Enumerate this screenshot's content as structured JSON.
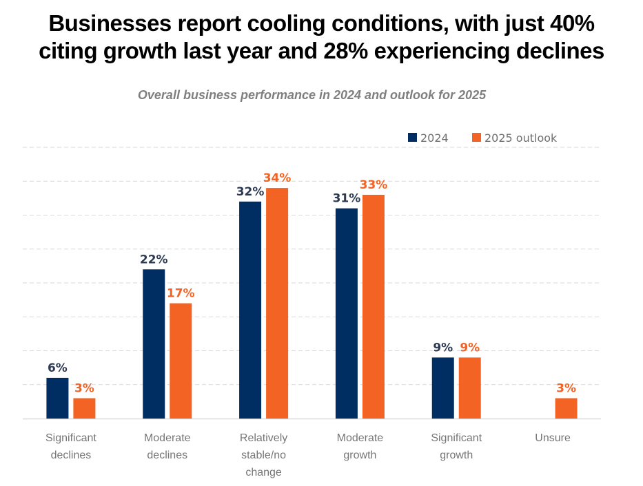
{
  "title": "Businesses report cooling conditions, with just 40% citing growth last year and 28% experiencing declines",
  "title_lines": [
    "Businesses report cooling conditions, with just 40%",
    "citing growth last year and 28% experiencing declines"
  ],
  "subtitle": "Overall business performance in 2024 and outlook for 2025",
  "chart_data": {
    "type": "bar",
    "title": "Overall business performance in 2024 and outlook for 2025",
    "xlabel": "",
    "ylabel": "",
    "ylim": [
      0,
      40
    ],
    "grid": true,
    "legend_position": "top-right",
    "categories": [
      [
        "Significant",
        "declines"
      ],
      [
        "Moderate",
        "declines"
      ],
      [
        "Relatively",
        "stable/no",
        "change"
      ],
      [
        "Moderate",
        "growth"
      ],
      [
        "Significant",
        "growth"
      ],
      [
        "Unsure"
      ]
    ],
    "category_names": [
      "Significant declines",
      "Moderate declines",
      "Relatively stable/no change",
      "Moderate growth",
      "Significant growth",
      "Unsure"
    ],
    "series": [
      {
        "name": "2024",
        "color": "#002d62",
        "label_color": "#2e3a52",
        "values": [
          6,
          22,
          32,
          31,
          9,
          null
        ],
        "labels": [
          "6%",
          "22%",
          "32%",
          "31%",
          "9%",
          null
        ]
      },
      {
        "name": "2025 outlook",
        "color": "#f26324",
        "label_color": "#f26324",
        "values": [
          3,
          17,
          34,
          33,
          9,
          3
        ],
        "labels": [
          "3%",
          "17%",
          "34%",
          "33%",
          "9%",
          "3%"
        ]
      }
    ]
  }
}
